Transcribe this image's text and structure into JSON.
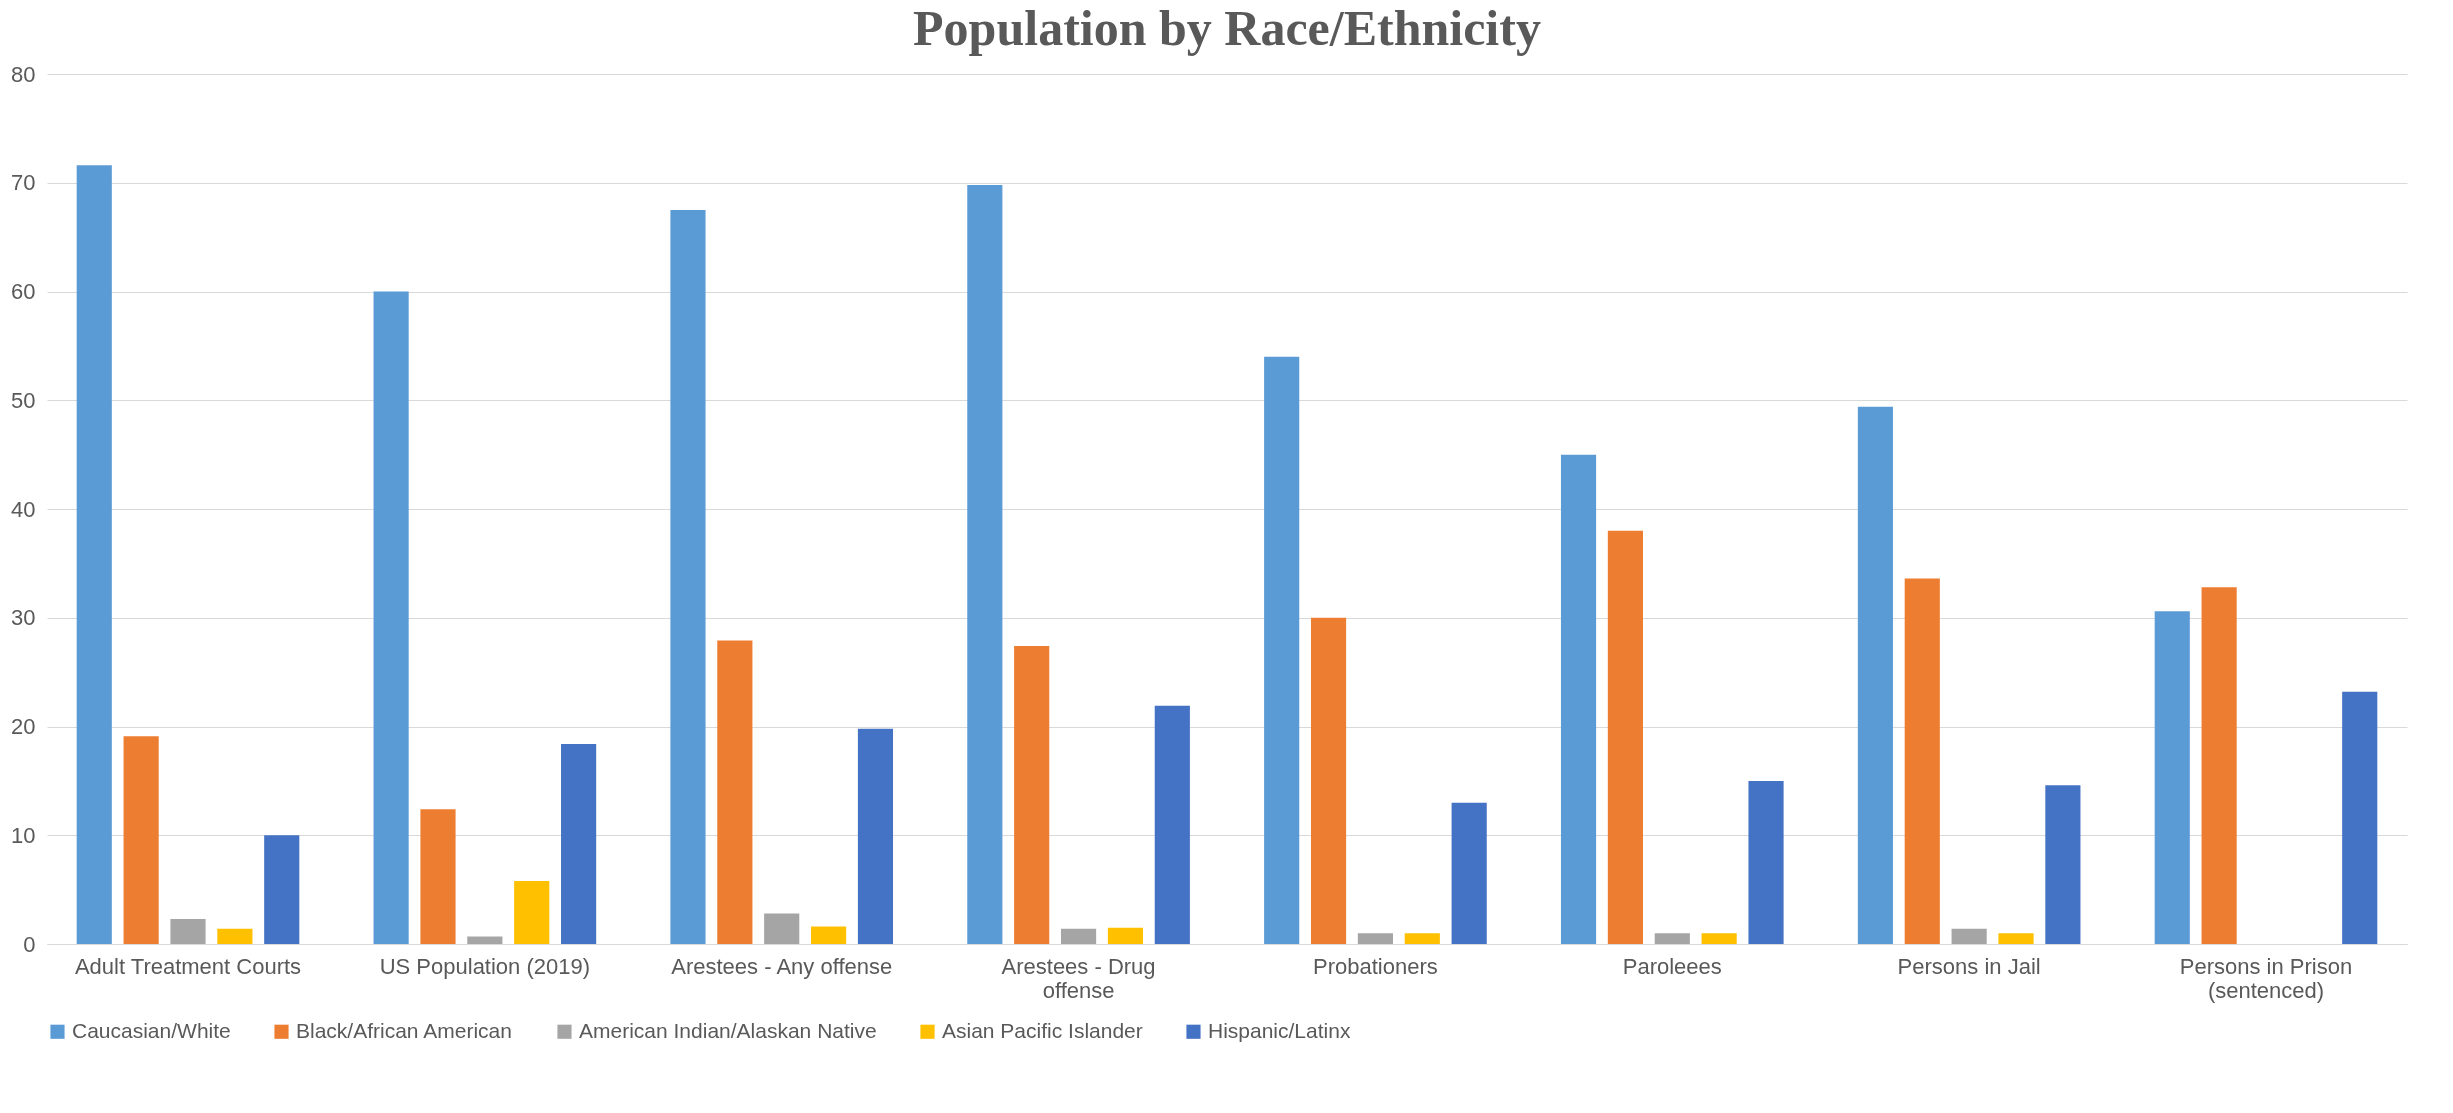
{
  "chart_data": {
    "type": "bar",
    "title": "Population by Race/Ethnicity",
    "categories": [
      "Adult Treatment Courts",
      "US Population (2019)",
      "Arestees - Any offense",
      "Arestees - Drug offense",
      "Probationers",
      "Paroleees",
      "Persons in Jail",
      "Persons in Prison (sentenced)"
    ],
    "series": [
      {
        "name": "Caucasian/White",
        "color": "#5b9bd5",
        "values": [
          71.6,
          60,
          67.5,
          69.8,
          54,
          45,
          49.4,
          30.6
        ]
      },
      {
        "name": "Black/African American",
        "color": "#ed7d31",
        "values": [
          19.1,
          12.4,
          27.9,
          27.4,
          30,
          38,
          33.6,
          32.8
        ]
      },
      {
        "name": "American Indian/Alaskan Native",
        "color": "#a5a5a5",
        "values": [
          2.3,
          0.7,
          2.8,
          1.4,
          1,
          1,
          1.4,
          null
        ]
      },
      {
        "name": "Asian Pacific Islander",
        "color": "#ffc000",
        "values": [
          1.4,
          5.8,
          1.6,
          1.5,
          1,
          1,
          1,
          null
        ]
      },
      {
        "name": "Hispanic/Latinx",
        "color": "#4472c4",
        "values": [
          10,
          18.4,
          19.8,
          21.9,
          13,
          15,
          14.6,
          23.2
        ]
      }
    ],
    "ylim": [
      0,
      80
    ],
    "yticks": [
      0,
      10,
      20,
      30,
      40,
      50,
      60,
      70,
      80
    ],
    "grid": "y",
    "legend": "bottom"
  }
}
